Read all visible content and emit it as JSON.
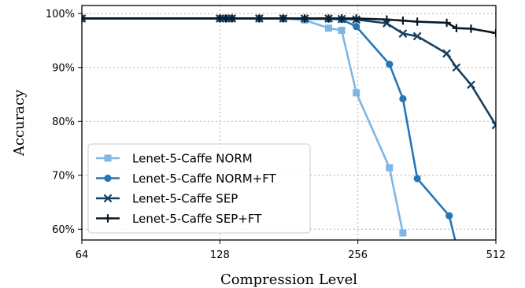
{
  "chart_data": {
    "type": "line",
    "xlabel": "Compression Level",
    "ylabel": "Accuracy",
    "x_scale": "log2",
    "xlim": [
      64,
      512
    ],
    "ylim": [
      58,
      101.5
    ],
    "x_ticks": [
      64,
      128,
      256,
      512
    ],
    "x_tick_labels": [
      "64",
      "128",
      "256",
      "512"
    ],
    "y_ticks": [
      60,
      70,
      80,
      90,
      100
    ],
    "y_tick_labels": [
      "60%",
      "70%",
      "80%",
      "90%",
      "100%"
    ],
    "grid": true,
    "legend_position": "lower-left",
    "series": [
      {
        "name": "Lenet-5-Caffe NORM",
        "color": "#7fb6e3",
        "marker": "square",
        "x": [
          64,
          128,
          132,
          136,
          156,
          176,
          196,
          221,
          236,
          254,
          300,
          321
        ],
        "y": [
          99.1,
          99.1,
          99.1,
          99.1,
          99.1,
          99.1,
          98.8,
          97.3,
          96.9,
          85.3,
          71.4,
          59.3
        ]
      },
      {
        "name": "Lenet-5-Caffe NORM+FT",
        "color": "#2676b8",
        "marker": "circle",
        "x": [
          64,
          128,
          132,
          136,
          156,
          176,
          196,
          221,
          236,
          254,
          300,
          321,
          345,
          405,
          420
        ],
        "y": [
          99.1,
          99.1,
          99.1,
          99.1,
          99.1,
          99.1,
          99.0,
          99.0,
          98.9,
          97.6,
          90.6,
          84.2,
          69.4,
          62.5,
          57.0
        ]
      },
      {
        "name": "Lenet-5-Caffe SEP",
        "color": "#173f5f",
        "marker": "x",
        "x": [
          64,
          128,
          132,
          136,
          156,
          176,
          196,
          221,
          236,
          254,
          296,
          321,
          345,
          400,
          420,
          452,
          512
        ],
        "y": [
          99.1,
          99.1,
          99.1,
          99.1,
          99.1,
          99.1,
          99.1,
          99.1,
          99.0,
          98.9,
          98.2,
          96.3,
          95.8,
          92.6,
          90.0,
          86.8,
          79.3
        ]
      },
      {
        "name": "Lenet-5-Caffe SEP+FT",
        "color": "#0b1a26",
        "marker": "plus",
        "x": [
          64,
          128,
          132,
          136,
          156,
          176,
          196,
          221,
          236,
          254,
          296,
          321,
          345,
          400,
          420,
          452,
          512
        ],
        "y": [
          99.1,
          99.1,
          99.1,
          99.1,
          99.1,
          99.1,
          99.1,
          99.1,
          99.1,
          99.1,
          98.9,
          98.7,
          98.5,
          98.3,
          97.3,
          97.2,
          96.4
        ]
      }
    ]
  }
}
